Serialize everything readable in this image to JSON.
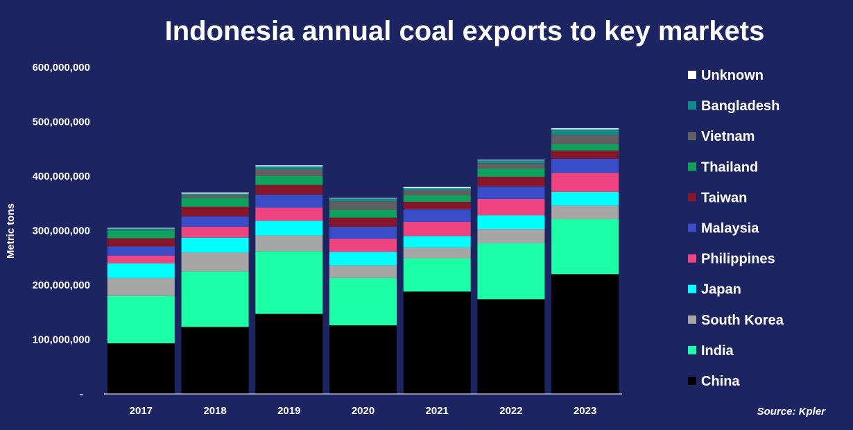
{
  "chart_data": {
    "type": "bar",
    "stacked": true,
    "title": "Indonesia annual coal exports to key markets",
    "ylabel": "Metric tons",
    "xlabel": "",
    "source_text": "Source:  Kpler",
    "ylim": [
      0,
      600000000
    ],
    "ytick_labels": [
      "-",
      "100,000,000",
      "200,000,000",
      "300,000,000",
      "400,000,000",
      "500,000,000",
      "600,000,000"
    ],
    "ytick_values": [
      0,
      100000000,
      200000000,
      300000000,
      400000000,
      500000000,
      600000000
    ],
    "grid": false,
    "legend_position": "right",
    "categories": [
      "2017",
      "2018",
      "2019",
      "2020",
      "2021",
      "2022",
      "2023"
    ],
    "series": [
      {
        "name": "China",
        "color": "#000000",
        "values": [
          93000000,
          123000000,
          147000000,
          126000000,
          188000000,
          174000000,
          220000000
        ]
      },
      {
        "name": "India",
        "color": "#1dffa6",
        "values": [
          87000000,
          102000000,
          115000000,
          87000000,
          61000000,
          103000000,
          101000000
        ]
      },
      {
        "name": "South Korea",
        "color": "#a6a6a6",
        "values": [
          33000000,
          35000000,
          29000000,
          23000000,
          20000000,
          26000000,
          25000000
        ]
      },
      {
        "name": "Japan",
        "color": "#00ffff",
        "values": [
          27000000,
          27000000,
          27000000,
          25000000,
          21000000,
          25000000,
          25000000
        ]
      },
      {
        "name": "Philippines",
        "color": "#ee4480",
        "values": [
          14000000,
          20000000,
          24000000,
          24000000,
          26000000,
          30000000,
          35000000
        ]
      },
      {
        "name": "Malaysia",
        "color": "#3a4dc8",
        "values": [
          17000000,
          19000000,
          24000000,
          22000000,
          23000000,
          23000000,
          26000000
        ]
      },
      {
        "name": "Taiwan",
        "color": "#86172a",
        "values": [
          15000000,
          18000000,
          18000000,
          17000000,
          14000000,
          18000000,
          15000000
        ]
      },
      {
        "name": "Thailand",
        "color": "#0ea35c",
        "values": [
          14000000,
          16000000,
          16000000,
          14000000,
          12000000,
          15000000,
          12000000
        ]
      },
      {
        "name": "Vietnam",
        "color": "#606060",
        "values": [
          1000000,
          5000000,
          13000000,
          16000000,
          9000000,
          10000000,
          17000000
        ]
      },
      {
        "name": "Bangladesh",
        "color": "#0f8c8c",
        "values": [
          3000000,
          3000000,
          5000000,
          5000000,
          4000000,
          5000000,
          10000000
        ]
      },
      {
        "name": "Unknown",
        "color": "#ffffff",
        "values": [
          1000000,
          2000000,
          2000000,
          1000000,
          2000000,
          1000000,
          2000000
        ]
      }
    ]
  }
}
